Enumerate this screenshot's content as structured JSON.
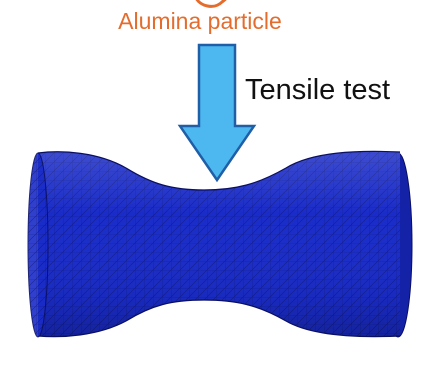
{
  "labels": {
    "particle": "Alumina particle",
    "test": "Tensile test"
  },
  "icons": {
    "particle": "particle-outline-icon",
    "arrow": "down-arrow-icon",
    "specimen": "fem-specimen-mesh-icon"
  },
  "colors": {
    "particle_label": "#e46c2c",
    "arrow_fill": "#4db8f0",
    "arrow_stroke": "#1f5fa8",
    "mesh_base": "#1828c8",
    "stress_peak": "#e0201c",
    "mesh_lines": "#0a0f60"
  }
}
